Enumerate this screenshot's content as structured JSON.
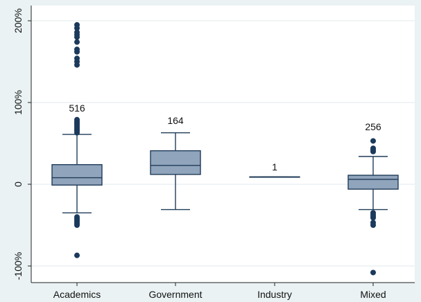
{
  "chart_data": {
    "type": "box",
    "title": "",
    "xlabel": "",
    "ylabel": "",
    "ylim": [
      -120,
      200
    ],
    "yticks": [
      {
        "value": 200,
        "label": "200%"
      },
      {
        "value": 100,
        "label": "100%"
      },
      {
        "value": 0,
        "label": "0"
      },
      {
        "value": -100,
        "label": "-100%"
      }
    ],
    "grid": true,
    "legend": "none",
    "colors": {
      "background": "#eaf2f3",
      "plot_background": "#ffffff",
      "grid": "#e6eef0",
      "box_fill": "#90a4bc",
      "box_stroke": "#1f3b57",
      "outlier": "#1b3a5c",
      "axis": "#222222"
    },
    "categories": [
      "Academics",
      "Government",
      "Industry",
      "Mixed"
    ],
    "boxes": [
      {
        "category": "Academics",
        "count_label": "516",
        "whisker_low": -35,
        "q1": -1,
        "median": 8,
        "q3": 24,
        "whisker_high": 61,
        "outliers": [
          195,
          191,
          186,
          183,
          180,
          174,
          165,
          162,
          154,
          150,
          146,
          79,
          77,
          75,
          73,
          71,
          69,
          67,
          65,
          63,
          -40,
          -42,
          -44,
          -46,
          -48,
          -50,
          -87
        ]
      },
      {
        "category": "Government",
        "count_label": "164",
        "whisker_low": -31,
        "q1": 12,
        "median": 23,
        "q3": 41,
        "whisker_high": 63,
        "outliers": []
      },
      {
        "category": "Industry",
        "count_label": "1",
        "whisker_low": 9,
        "q1": 9,
        "median": 9,
        "q3": 9,
        "whisker_high": 9,
        "outliers": []
      },
      {
        "category": "Mixed",
        "count_label": "256",
        "whisker_low": -31,
        "q1": -6,
        "median": 6,
        "q3": 11,
        "whisker_high": 34,
        "outliers": [
          53,
          44,
          42,
          40,
          -35,
          -37,
          -39,
          -41,
          -47,
          -50,
          -108
        ]
      }
    ]
  }
}
